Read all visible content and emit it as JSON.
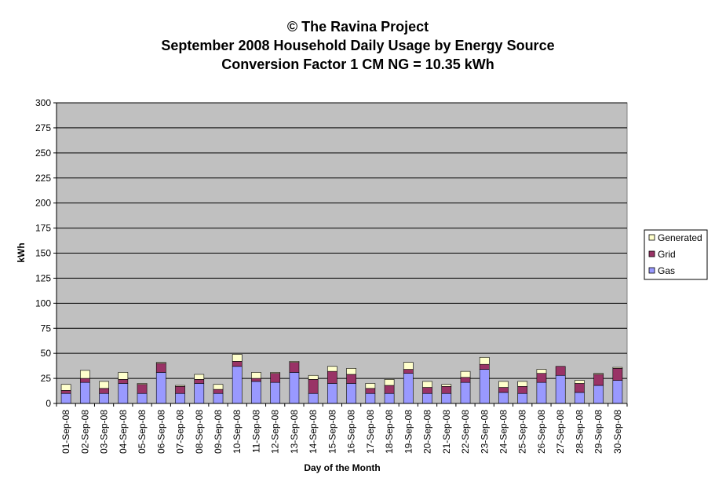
{
  "chart_data": {
    "type": "bar",
    "stacked": true,
    "title_lines": [
      "© The Ravina Project",
      "September 2008 Household Daily Usage by Energy Source",
      "Conversion Factor 1 CM NG = 10.35 kWh"
    ],
    "xlabel": "Day of the Month",
    "ylabel": "kWh",
    "ylim": [
      0,
      300
    ],
    "yticks": [
      0,
      25,
      50,
      75,
      100,
      125,
      150,
      175,
      200,
      225,
      250,
      275,
      300
    ],
    "grid": true,
    "legend_position": "right",
    "categories": [
      "01-Sep-08",
      "02-Sep-08",
      "03-Sep-08",
      "04-Sep-08",
      "05-Sep-08",
      "06-Sep-08",
      "07-Sep-08",
      "08-Sep-08",
      "09-Sep-08",
      "10-Sep-08",
      "11-Sep-08",
      "12-Sep-08",
      "13-Sep-08",
      "14-Sep-08",
      "15-Sep-08",
      "16-Sep-08",
      "17-Sep-08",
      "18-Sep-08",
      "19-Sep-08",
      "20-Sep-08",
      "21-Sep-08",
      "22-Sep-08",
      "23-Sep-08",
      "24-Sep-08",
      "25-Sep-08",
      "26-Sep-08",
      "27-Sep-08",
      "28-Sep-08",
      "29-Sep-08",
      "30-Sep-08"
    ],
    "series": [
      {
        "name": "Gas",
        "color": "#9999ff",
        "values": [
          10,
          21,
          10,
          20,
          10,
          31,
          10,
          20,
          10,
          37,
          22,
          21,
          31,
          10,
          20,
          20,
          10,
          10,
          30,
          10,
          10,
          21,
          34,
          11,
          10,
          21,
          28,
          11,
          18,
          23
        ]
      },
      {
        "name": "Grid",
        "color": "#993366",
        "values": [
          3,
          4,
          5,
          4,
          9,
          9,
          7,
          4,
          4,
          5,
          3,
          9,
          10,
          14,
          12,
          9,
          5,
          8,
          4,
          6,
          7,
          5,
          5,
          5,
          7,
          9,
          9,
          9,
          11,
          12
        ]
      },
      {
        "name": "Generated",
        "color": "#ffffcc",
        "values": [
          6,
          8,
          7,
          7,
          1,
          1,
          1,
          5,
          5,
          7,
          6,
          1,
          1,
          4,
          5,
          6,
          5,
          6,
          7,
          6,
          2,
          6,
          7,
          6,
          5,
          4,
          0,
          3,
          1,
          1
        ]
      }
    ],
    "legend_order": [
      "Generated",
      "Grid",
      "Gas"
    ],
    "plot_background": "#c0c0c0"
  }
}
